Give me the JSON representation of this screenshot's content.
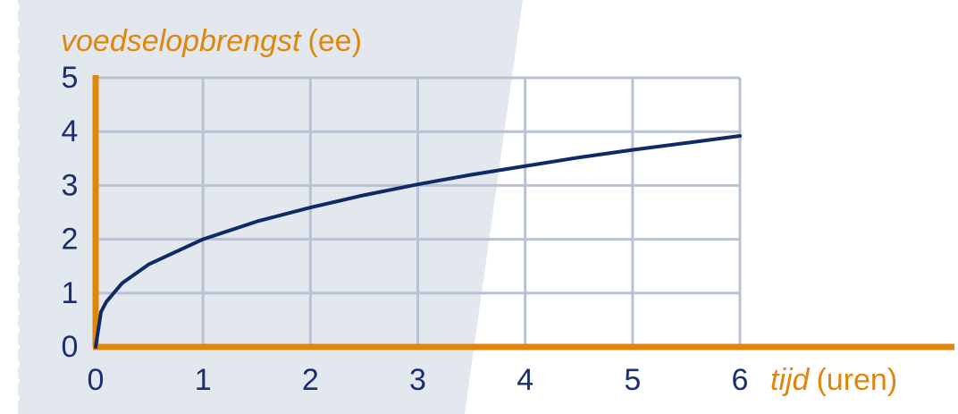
{
  "chart_data": {
    "type": "line",
    "ylabel": {
      "text": "voedselopbrengst",
      "unit": "(ee)"
    },
    "xlabel": {
      "text": "tijd",
      "unit": "(uren)"
    },
    "x": [
      0,
      0.05,
      0.1,
      0.25,
      0.5,
      1,
      1.5,
      2,
      2.5,
      3,
      3.5,
      4,
      4.5,
      5,
      5.5,
      6
    ],
    "series": [
      {
        "color": "#0f2a66",
        "values": [
          0,
          0.65,
          0.84,
          1.19,
          1.54,
          2,
          2.33,
          2.59,
          2.82,
          3.02,
          3.2,
          3.36,
          3.52,
          3.66,
          3.79,
          3.92
        ]
      }
    ],
    "xlim": [
      0,
      6
    ],
    "xticks": [
      0,
      1,
      2,
      3,
      4,
      5,
      6
    ],
    "ylim": [
      0,
      5
    ],
    "yticks": [
      0,
      1,
      2,
      3,
      4,
      5
    ],
    "grid": true,
    "axis_color": "#e0870b",
    "grid_color": "#b8c2d3"
  }
}
